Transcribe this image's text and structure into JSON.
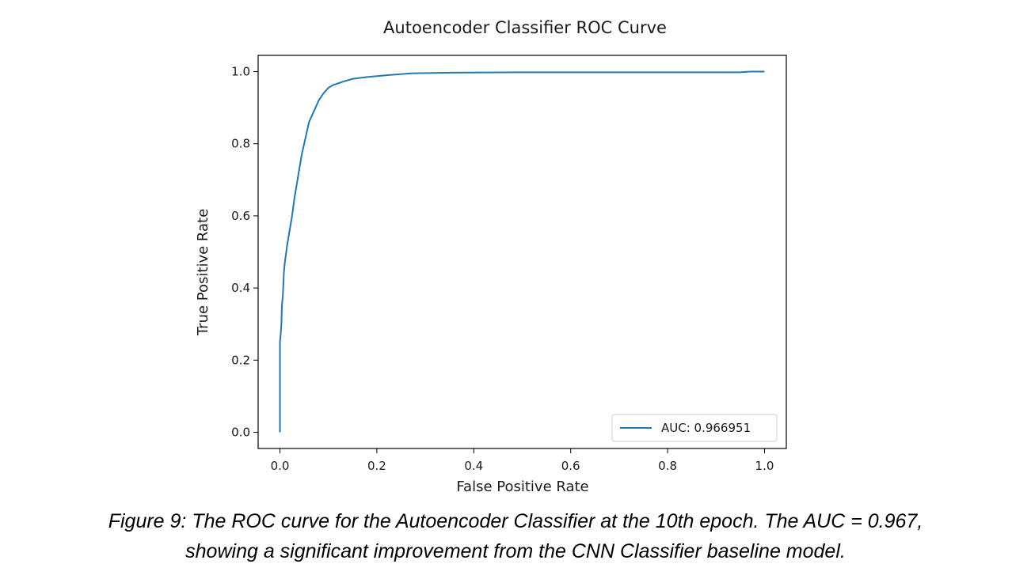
{
  "chart_data": {
    "type": "line",
    "title": "Autoencoder Classifier ROC Curve",
    "xlabel": "False Positive Rate",
    "ylabel": "True Positive Rate",
    "xlim": [
      -0.045,
      1.045
    ],
    "ylim": [
      -0.045,
      1.045
    ],
    "xticks": [
      "0.0",
      "0.2",
      "0.4",
      "0.6",
      "0.8",
      "1.0"
    ],
    "yticks": [
      "0.0",
      "0.2",
      "0.4",
      "0.6",
      "0.8",
      "1.0"
    ],
    "grid": false,
    "legend_position": "lower-right",
    "line_color": "#1f77b4",
    "series": [
      {
        "name": "AUC: 0.966951",
        "x": [
          0.0,
          0.0,
          0.002,
          0.003,
          0.004,
          0.006,
          0.008,
          0.01,
          0.015,
          0.02,
          0.025,
          0.03,
          0.035,
          0.04,
          0.045,
          0.05,
          0.055,
          0.06,
          0.07,
          0.08,
          0.09,
          0.1,
          0.11,
          0.13,
          0.15,
          0.18,
          0.22,
          0.27,
          0.35,
          0.5,
          0.7,
          0.95,
          0.97,
          1.0
        ],
        "y": [
          0.0,
          0.25,
          0.28,
          0.3,
          0.35,
          0.38,
          0.44,
          0.47,
          0.52,
          0.56,
          0.6,
          0.65,
          0.69,
          0.73,
          0.77,
          0.8,
          0.83,
          0.86,
          0.89,
          0.92,
          0.94,
          0.955,
          0.963,
          0.972,
          0.98,
          0.985,
          0.99,
          0.995,
          0.997,
          0.998,
          0.998,
          0.998,
          1.0,
          1.0
        ]
      }
    ]
  },
  "caption": {
    "line1": "Figure 9: The ROC curve for the Autoencoder Classifier at the 10th epoch. The AUC = 0.967,",
    "line2": "showing a significant improvement from the CNN Classifier baseline model."
  }
}
